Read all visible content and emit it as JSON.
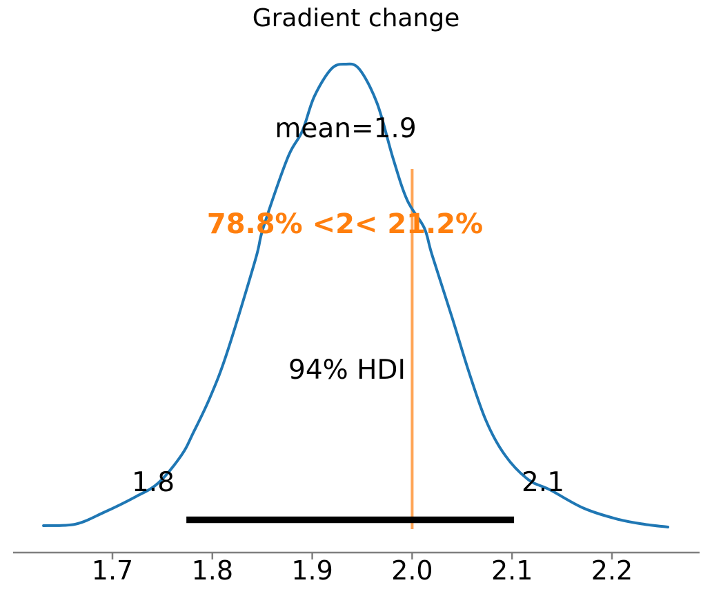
{
  "chart_data": {
    "type": "area",
    "variant": "posterior-kde",
    "title": "Gradient change",
    "xlabel": "",
    "ylabel": "",
    "xlim": [
      1.6,
      2.285
    ],
    "ylim": [
      0,
      4.5
    ],
    "grid": false,
    "legend": false,
    "x_ticks": [
      {
        "value": 1.7,
        "label": "1.7"
      },
      {
        "value": 1.8,
        "label": "1.8"
      },
      {
        "value": 1.9,
        "label": "1.9"
      },
      {
        "value": 2.0,
        "label": "2.0"
      },
      {
        "value": 2.1,
        "label": "2.1"
      },
      {
        "value": 2.2,
        "label": "2.2"
      }
    ],
    "curve": {
      "name": "posterior-density",
      "color": "#1f77b4",
      "points": [
        [
          1.631,
          0.02
        ],
        [
          1.663,
          0.035
        ],
        [
          1.691,
          0.147
        ],
        [
          1.723,
          0.3
        ],
        [
          1.746,
          0.435
        ],
        [
          1.769,
          0.703
        ],
        [
          1.781,
          0.924
        ],
        [
          1.798,
          1.272
        ],
        [
          1.815,
          1.708
        ],
        [
          1.843,
          2.6
        ],
        [
          1.851,
          2.913
        ],
        [
          1.875,
          3.582
        ],
        [
          1.89,
          3.85
        ],
        [
          1.902,
          4.185
        ],
        [
          1.919,
          4.453
        ],
        [
          1.933,
          4.5
        ],
        [
          1.947,
          4.453
        ],
        [
          1.965,
          4.118
        ],
        [
          1.981,
          3.582
        ],
        [
          1.995,
          3.18
        ],
        [
          2.012,
          2.913
        ],
        [
          2.02,
          2.645
        ],
        [
          2.04,
          2.04
        ],
        [
          2.057,
          1.507
        ],
        [
          2.074,
          1.038
        ],
        [
          2.093,
          0.703
        ],
        [
          2.116,
          0.469
        ],
        [
          2.138,
          0.368
        ],
        [
          2.172,
          0.188
        ],
        [
          2.207,
          0.08
        ],
        [
          2.233,
          0.033
        ],
        [
          2.256,
          0.007
        ]
      ]
    },
    "annotations": {
      "mean": {
        "text": "mean=1.9",
        "value": 1.9
      },
      "hdi": {
        "text": "94% HDI",
        "probability": "94%",
        "lower": 1.8,
        "upper": 2.1,
        "lower_label": "1.8",
        "upper_label": "2.1",
        "bar_span": [
          1.774,
          2.102
        ],
        "bar_color": "#000000"
      },
      "ref_val": {
        "text": "78.8% <2< 21.2%",
        "value": 2,
        "percent_below": "78.8%",
        "percent_above": "21.2%",
        "text_color": "#ff7f0e",
        "line_color": "#ff7f0e",
        "line_opacity": 0.7
      }
    },
    "colors": {
      "curve": "#1f77b4",
      "axis": "#7f7f7f",
      "text": "#000000"
    }
  }
}
